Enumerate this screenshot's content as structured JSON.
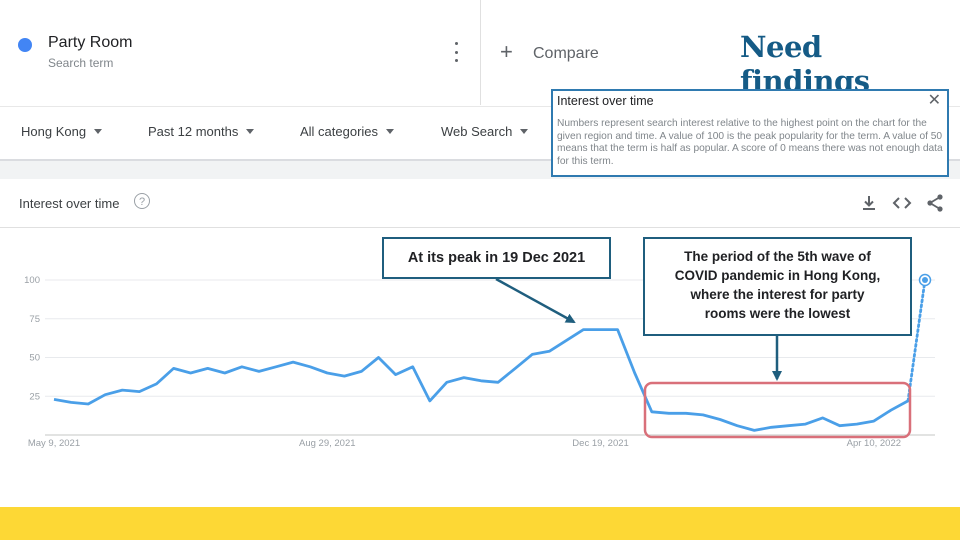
{
  "headline": "Need findings",
  "search_term": {
    "name": "Party Room",
    "sub": "Search term",
    "color": "#4285f4"
  },
  "compare": {
    "label": "Compare"
  },
  "filters": [
    {
      "label": "Hong Kong"
    },
    {
      "label": "Past 12 months"
    },
    {
      "label": "All categories"
    },
    {
      "label": "Web Search"
    }
  ],
  "tooltip": {
    "title": "Interest over time",
    "body": "Numbers represent search interest relative to the highest point on the chart for the given region and time. A value of 100 is the peak popularity for the term. A value of 50 means that the term is half as popular. A score of 0 means there was not enough data for this term."
  },
  "section": {
    "title": "Interest over time"
  },
  "annotations": {
    "peak": "At its peak in 19 Dec 2021",
    "wave_line1": "The period of the 5th wave of",
    "wave_line2": "COVID pandemic in Hong Kong,",
    "wave_line3": "where the interest for party",
    "wave_line4": "rooms were the lowest"
  },
  "chart_data": {
    "type": "line",
    "title": "Interest over time",
    "xlabel": "",
    "ylabel": "",
    "ylim": [
      0,
      100
    ],
    "yticks": [
      "100",
      "75",
      "50",
      "25"
    ],
    "xticks": [
      "May 9, 2021",
      "Aug 29, 2021",
      "Dec 19, 2021",
      "Apr 10, 2022"
    ],
    "series": [
      {
        "color": "#4a9fe8",
        "values": [
          23,
          21,
          20,
          26,
          29,
          28,
          33,
          43,
          40,
          43,
          40,
          44,
          41,
          44,
          47,
          44,
          40,
          38,
          41,
          50,
          39,
          44,
          22,
          34,
          37,
          35,
          34,
          43,
          52,
          54,
          61,
          68,
          68,
          68,
          40,
          15,
          14,
          14,
          13,
          10,
          6,
          3,
          5,
          6,
          7,
          11,
          6,
          7,
          9,
          16,
          22
        ],
        "partial_last_value": 100
      }
    ],
    "highlight_color": "#d9707a",
    "grid": true
  }
}
